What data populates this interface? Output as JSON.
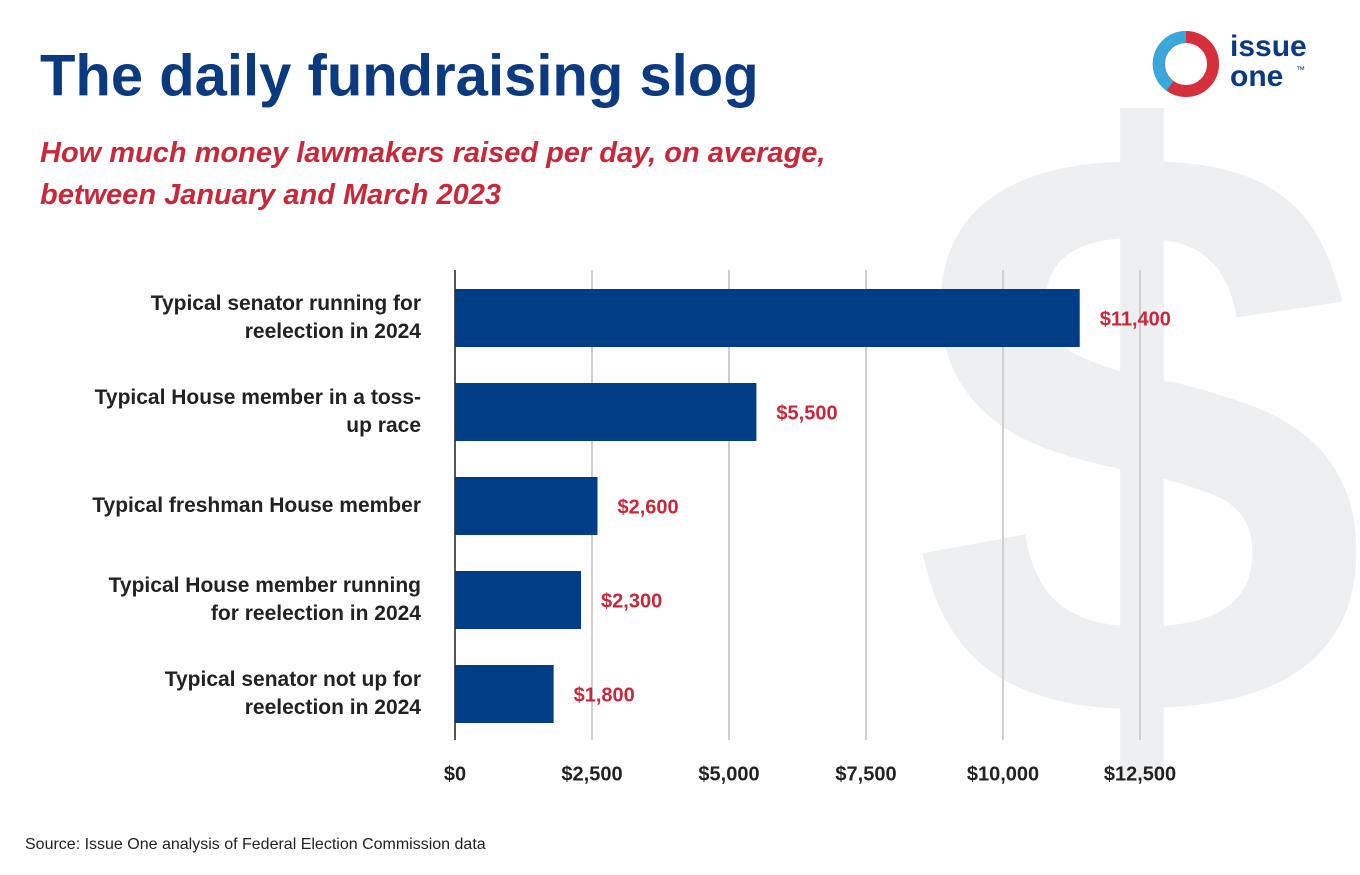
{
  "chart_data": {
    "type": "barh",
    "title": "The daily fundraising slog",
    "subtitle": "How much money lawmakers raised per day, on average, between January and March 2023",
    "source": "Source: Issue One analysis of Federal Election Commission data",
    "logo": {
      "line1": "issue",
      "line2": "one",
      "mark": "™"
    },
    "watermark": "$",
    "categories": [
      "Typical senator running for reelection in 2024",
      "Typical House member in a toss-up race",
      "Typical freshman House member",
      "Typical House member running for reelection in 2024",
      "Typical senator not up for reelection in 2024"
    ],
    "values": [
      11400,
      5500,
      2600,
      2300,
      1800
    ],
    "value_labels": [
      "$11,400",
      "$5,500",
      "$2,600",
      "$2,300",
      "$1,800"
    ],
    "color": "#003d87",
    "label_color": "#c8283a",
    "xlim": [
      0,
      12500
    ],
    "xticks": [
      {
        "value": 0,
        "label": "$0"
      },
      {
        "value": 2500,
        "label": "$2,500"
      },
      {
        "value": 5000,
        "label": "$5,000"
      },
      {
        "value": 7500,
        "label": "$7,500"
      },
      {
        "value": 10000,
        "label": "$10,000"
      },
      {
        "value": 12500,
        "label": "$12,500"
      }
    ],
    "grid": true
  }
}
